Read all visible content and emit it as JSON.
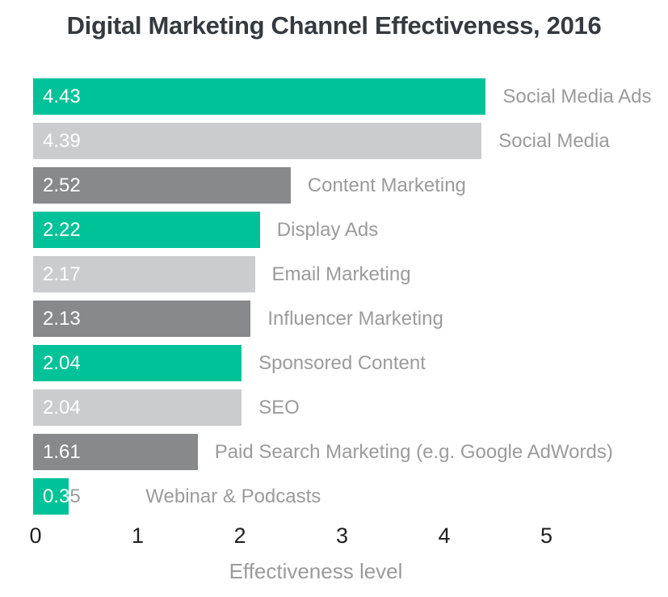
{
  "title": "Digital Marketing Channel Effectiveness, 2016",
  "chart_data": {
    "type": "bar",
    "orientation": "horizontal",
    "title": "Digital Marketing Channel Effectiveness, 2016",
    "xlabel": "Effectiveness level",
    "xlim": [
      0,
      5
    ],
    "x_ticks": [
      "0",
      "1",
      "2",
      "3",
      "4",
      "5"
    ],
    "grid": false,
    "legend": false,
    "value_labels_position": "inside-start",
    "category_labels_position": "outside-end",
    "rows": [
      {
        "label": "Social Media Ads",
        "value": 4.43,
        "value_label": "4.43",
        "color": "#00c298"
      },
      {
        "label": "Social Media",
        "value": 4.39,
        "value_label": "4.39",
        "color": "#cbcccd"
      },
      {
        "label": "Content Marketing",
        "value": 2.52,
        "value_label": "2.52",
        "color": "#87898b"
      },
      {
        "label": "Display Ads",
        "value": 2.22,
        "value_label": "2.22",
        "color": "#00c298"
      },
      {
        "label": "Email Marketing",
        "value": 2.17,
        "value_label": "2.17",
        "color": "#cbcccd"
      },
      {
        "label": "Influencer Marketing",
        "value": 2.13,
        "value_label": "2.13",
        "color": "#87898b"
      },
      {
        "label": "Sponsored Content",
        "value": 2.04,
        "value_label": "2.04",
        "color": "#00c298"
      },
      {
        "label": "SEO",
        "value": 2.04,
        "value_label": "2.04",
        "color": "#cbcccd"
      },
      {
        "label": "Paid Search Marketing (e.g. Google AdWords)",
        "value": 1.61,
        "value_label": "1.61",
        "color": "#87898b"
      },
      {
        "label": "Webinar & Podcasts",
        "value": 0.35,
        "value_label": "0.35",
        "color": "#00c298"
      }
    ]
  },
  "colors": {
    "teal": "#00c298",
    "light_gray": "#cbcccd",
    "dark_gray": "#87898b",
    "value_label": "#ffffff",
    "category_label": "#9b9b9b",
    "tick": "#1f1f1f",
    "axis_title": "#9b9b9b",
    "title": "#343a3f",
    "background": "#ffffff"
  }
}
